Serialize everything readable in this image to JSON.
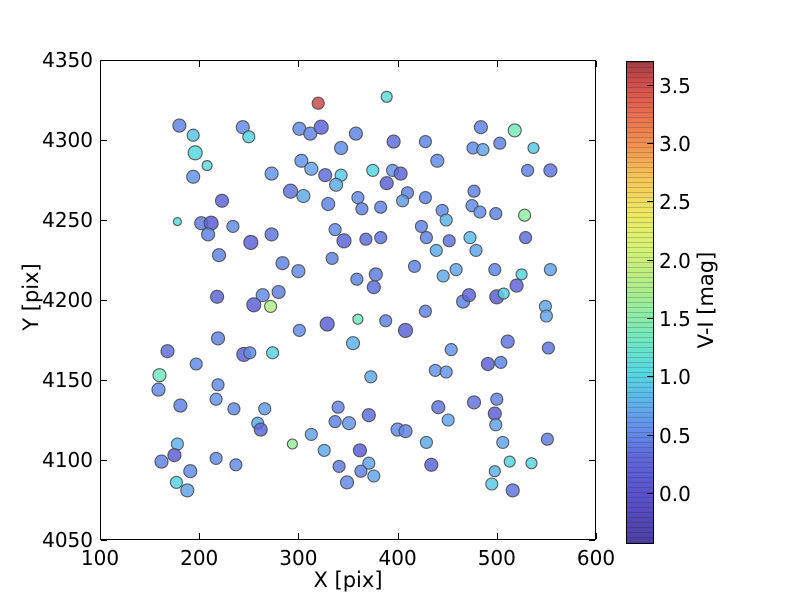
{
  "chart_data": {
    "type": "scatter",
    "title": "",
    "xlabel": "X [pix]",
    "ylabel": "Y [pix]",
    "xlim": [
      100,
      600
    ],
    "ylim": [
      4050,
      4350
    ],
    "xticks": [
      100,
      200,
      300,
      400,
      500,
      600
    ],
    "yticks": [
      4050,
      4100,
      4150,
      4200,
      4250,
      4300,
      4350
    ],
    "grid": false,
    "marker_edge_color": "#4a4a4a",
    "marker_alpha": 0.85,
    "colorbar": {
      "label": "V-I [mag]",
      "vmin": -0.41,
      "vmax": 3.71,
      "ticks": [
        0.0,
        0.5,
        1.0,
        1.5,
        2.0,
        2.5,
        3.0,
        3.5
      ],
      "stops": [
        {
          "v": -0.41,
          "c": "#4b3fa0"
        },
        {
          "v": 0.0,
          "c": "#5a52cb"
        },
        {
          "v": 0.3,
          "c": "#5e66d8"
        },
        {
          "v": 0.6,
          "c": "#6495ea"
        },
        {
          "v": 0.85,
          "c": "#5cbce9"
        },
        {
          "v": 1.05,
          "c": "#57d8e0"
        },
        {
          "v": 1.3,
          "c": "#6ee7c4"
        },
        {
          "v": 1.55,
          "c": "#8feda3"
        },
        {
          "v": 1.8,
          "c": "#b2ee87"
        },
        {
          "v": 2.1,
          "c": "#d5f375"
        },
        {
          "v": 2.4,
          "c": "#eeea60"
        },
        {
          "v": 2.7,
          "c": "#f5c957"
        },
        {
          "v": 3.0,
          "c": "#f2924f"
        },
        {
          "v": 3.3,
          "c": "#e66a4e"
        },
        {
          "v": 3.55,
          "c": "#cc4b4b"
        },
        {
          "v": 3.71,
          "c": "#a03e3f"
        }
      ]
    },
    "points_format": [
      "X_pix",
      "Y_pix",
      "V-I_mag",
      "radius_px"
    ],
    "points": [
      [
        320,
        4323,
        3.55,
        6
      ],
      [
        180,
        4309,
        0.5,
        6.5
      ],
      [
        194,
        4303,
        0.9,
        6
      ],
      [
        244,
        4308,
        0.55,
        6.5
      ],
      [
        250,
        4302,
        1.0,
        6
      ],
      [
        301,
        4307,
        0.55,
        6.5
      ],
      [
        312,
        4304,
        0.5,
        6.5
      ],
      [
        323,
        4308,
        0.3,
        7
      ],
      [
        196,
        4292,
        1.05,
        7
      ],
      [
        343,
        4295,
        0.55,
        6.5
      ],
      [
        303,
        4287,
        0.6,
        6.5
      ],
      [
        313,
        4282,
        0.7,
        6.5
      ],
      [
        208,
        4284,
        1.1,
        5
      ],
      [
        194,
        4277,
        0.6,
        6.5
      ],
      [
        273,
        4279,
        0.6,
        6.5
      ],
      [
        327,
        4278,
        0.35,
        6.5
      ],
      [
        343,
        4278,
        0.95,
        6
      ],
      [
        338,
        4272,
        0.75,
        6.5
      ],
      [
        292,
        4268,
        0.4,
        7
      ],
      [
        305,
        4265,
        0.75,
        6.5
      ],
      [
        223,
        4262,
        0.3,
        6.5
      ],
      [
        330,
        4260,
        0.5,
        6.5
      ],
      [
        178,
        4249,
        1.1,
        4
      ],
      [
        202,
        4248,
        0.45,
        6.5
      ],
      [
        212,
        4248,
        0.15,
        7
      ],
      [
        234,
        4246,
        0.55,
        6
      ],
      [
        209,
        4241,
        0.5,
        6.5
      ],
      [
        273,
        4241,
        0.4,
        6.5
      ],
      [
        252,
        4236,
        0.25,
        7
      ],
      [
        337,
        4244,
        0.55,
        6
      ],
      [
        346,
        4237,
        0.3,
        7
      ],
      [
        220,
        4228,
        0.5,
        6.5
      ],
      [
        284,
        4223,
        0.5,
        6.5
      ],
      [
        300,
        4218,
        0.55,
        6.5
      ],
      [
        334,
        4226,
        0.5,
        6
      ],
      [
        218,
        4202,
        0.3,
        6.5
      ],
      [
        264,
        4203,
        0.55,
        6.5
      ],
      [
        280,
        4205,
        0.45,
        6.5
      ],
      [
        389,
        4327,
        1.1,
        5.5
      ],
      [
        358,
        4304,
        0.5,
        6.5
      ],
      [
        396,
        4299,
        0.35,
        6.5
      ],
      [
        428,
        4299,
        0.5,
        6
      ],
      [
        484,
        4308,
        0.5,
        6.5
      ],
      [
        518,
        4306,
        1.35,
        6.5
      ],
      [
        503,
        4298,
        0.5,
        6
      ],
      [
        476,
        4295,
        0.55,
        6
      ],
      [
        486,
        4294,
        0.7,
        6
      ],
      [
        537,
        4295,
        0.95,
        5.5
      ],
      [
        440,
        4287,
        0.55,
        6.5
      ],
      [
        375,
        4281,
        1.0,
        6
      ],
      [
        395,
        4281,
        0.6,
        6
      ],
      [
        403,
        4279,
        0.3,
        6.5
      ],
      [
        389,
        4273,
        0.25,
        6.5
      ],
      [
        531,
        4281,
        0.5,
        6
      ],
      [
        554,
        4281,
        0.4,
        6.5
      ],
      [
        360,
        4264,
        0.55,
        6
      ],
      [
        410,
        4267,
        0.5,
        6
      ],
      [
        405,
        4262,
        0.65,
        6
      ],
      [
        428,
        4264,
        0.5,
        6
      ],
      [
        364,
        4257,
        0.5,
        6
      ],
      [
        383,
        4258,
        0.5,
        6
      ],
      [
        477,
        4268,
        0.5,
        6
      ],
      [
        475,
        4259,
        0.55,
        6
      ],
      [
        483,
        4255,
        0.55,
        6
      ],
      [
        499,
        4254,
        0.5,
        6
      ],
      [
        528,
        4253,
        1.55,
        6
      ],
      [
        445,
        4256,
        0.55,
        6
      ],
      [
        449,
        4250,
        0.8,
        6
      ],
      [
        424,
        4246,
        0.5,
        6
      ],
      [
        429,
        4239,
        0.5,
        6
      ],
      [
        368,
        4238,
        0.35,
        6
      ],
      [
        383,
        4239,
        0.4,
        6
      ],
      [
        452,
        4237,
        0.4,
        6
      ],
      [
        473,
        4239,
        0.85,
        6
      ],
      [
        529,
        4239,
        0.35,
        6
      ],
      [
        439,
        4231,
        0.75,
        6
      ],
      [
        479,
        4231,
        0.7,
        6
      ],
      [
        417,
        4221,
        0.5,
        6
      ],
      [
        446,
        4215,
        0.75,
        6
      ],
      [
        459,
        4219,
        0.7,
        6
      ],
      [
        498,
        4219,
        0.5,
        6
      ],
      [
        525,
        4216,
        1.0,
        5.5
      ],
      [
        554,
        4219,
        0.7,
        6
      ],
      [
        359,
        4213,
        0.5,
        6
      ],
      [
        378,
        4216,
        0.45,
        6.5
      ],
      [
        376,
        4208,
        0.35,
        6.5
      ],
      [
        520,
        4209,
        0.3,
        6.5
      ],
      [
        500,
        4202,
        0.2,
        7
      ],
      [
        507,
        4204,
        1.0,
        5.5
      ],
      [
        255,
        4197,
        0.25,
        7
      ],
      [
        272,
        4196,
        1.8,
        6
      ],
      [
        301,
        4181,
        0.55,
        6
      ],
      [
        329,
        4185,
        0.25,
        7
      ],
      [
        219,
        4176,
        0.5,
        6.5
      ],
      [
        168,
        4168,
        0.35,
        6.5
      ],
      [
        197,
        4160,
        0.55,
        6
      ],
      [
        245,
        4166,
        0.3,
        7
      ],
      [
        251,
        4167,
        0.55,
        6
      ],
      [
        274,
        4167,
        1.0,
        6
      ],
      [
        160,
        4153,
        1.3,
        6.5
      ],
      [
        159,
        4144,
        0.55,
        6.5
      ],
      [
        181,
        4134,
        0.5,
        6.5
      ],
      [
        219,
        4147,
        0.55,
        6
      ],
      [
        217,
        4138,
        0.6,
        6
      ],
      [
        235,
        4132,
        0.55,
        6
      ],
      [
        266,
        4132,
        0.65,
        6
      ],
      [
        259,
        4123,
        0.75,
        6
      ],
      [
        262,
        4119,
        0.3,
        6.5
      ],
      [
        313,
        4116,
        0.7,
        6
      ],
      [
        294,
        4110,
        1.6,
        5
      ],
      [
        326,
        4106,
        0.75,
        6
      ],
      [
        340,
        4133,
        0.5,
        6
      ],
      [
        337,
        4124,
        0.5,
        6
      ],
      [
        351,
        4123,
        0.6,
        6.5
      ],
      [
        178,
        4110,
        0.8,
        6
      ],
      [
        175,
        4103,
        0.2,
        6.5
      ],
      [
        162,
        4099,
        0.5,
        6.5
      ],
      [
        191,
        4093,
        0.55,
        6.5
      ],
      [
        177,
        4086,
        1.0,
        6
      ],
      [
        188,
        4081,
        0.7,
        6.5
      ],
      [
        217,
        4101,
        0.55,
        6
      ],
      [
        237,
        4097,
        0.55,
        6
      ],
      [
        341,
        4096,
        0.45,
        6
      ],
      [
        349,
        4086,
        0.55,
        6.5
      ],
      [
        466,
        4199,
        0.5,
        6.5
      ],
      [
        472,
        4203,
        0.3,
        6.5
      ],
      [
        549,
        4196,
        0.7,
        6
      ],
      [
        550,
        4190,
        0.7,
        6
      ],
      [
        428,
        4193,
        0.5,
        6
      ],
      [
        360,
        4188,
        1.3,
        5
      ],
      [
        388,
        4187,
        0.5,
        6
      ],
      [
        408,
        4181,
        0.25,
        7
      ],
      [
        355,
        4173,
        0.8,
        6.5
      ],
      [
        454,
        4169,
        0.6,
        6
      ],
      [
        511,
        4174,
        0.4,
        6.5
      ],
      [
        552,
        4170,
        0.4,
        6
      ],
      [
        491,
        4160,
        0.25,
        6.5
      ],
      [
        504,
        4161,
        0.5,
        6
      ],
      [
        438,
        4156,
        0.6,
        6
      ],
      [
        449,
        4155,
        0.6,
        6
      ],
      [
        373,
        4152,
        0.75,
        6
      ],
      [
        477,
        4136,
        0.4,
        6.5
      ],
      [
        500,
        4138,
        0.5,
        6
      ],
      [
        498,
        4129,
        0.25,
        6.5
      ],
      [
        499,
        4122,
        0.7,
        6
      ],
      [
        441,
        4133,
        0.4,
        6.5
      ],
      [
        451,
        4125,
        0.7,
        6
      ],
      [
        371,
        4128,
        0.35,
        6.5
      ],
      [
        400,
        4119,
        0.55,
        6.5
      ],
      [
        408,
        4118,
        0.5,
        6.5
      ],
      [
        429,
        4111,
        0.75,
        6
      ],
      [
        506,
        4111,
        0.7,
        6
      ],
      [
        551,
        4113,
        0.45,
        6
      ],
      [
        362,
        4106,
        0.2,
        6.5
      ],
      [
        513,
        4099,
        1.0,
        5.5
      ],
      [
        535,
        4098,
        1.05,
        5.5
      ],
      [
        371,
        4098,
        0.7,
        6
      ],
      [
        363,
        4093,
        0.5,
        6
      ],
      [
        376,
        4090,
        0.7,
        6
      ],
      [
        434,
        4097,
        0.3,
        6.5
      ],
      [
        498,
        4093,
        0.8,
        5.5
      ],
      [
        495,
        4085,
        0.95,
        6
      ],
      [
        516,
        4081,
        0.4,
        6.5
      ]
    ]
  }
}
